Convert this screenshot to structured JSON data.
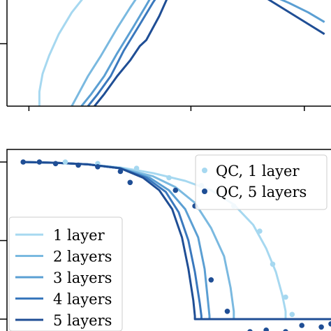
{
  "figure": {
    "panel_top": {
      "chart_data": {
        "type": "line",
        "xlabel": "",
        "ylabel": "",
        "title": "",
        "xlim": [
          0,
          1
        ],
        "ylim": [
          0,
          1
        ],
        "yticks": [
          0.52
        ],
        "xticks": [
          0.1,
          0.6,
          0.95
        ],
        "grid": false,
        "series": [
          {
            "color": "#a6d8f0",
            "x": [
              0.1,
              0.1,
              0.11,
              0.13,
              0.16,
              0.2,
              0.25
            ],
            "y": [
              0.0,
              0.12,
              0.27,
              0.42,
              0.6,
              0.78,
              0.95
            ]
          },
          {
            "color": "#7ab9e0",
            "x": [
              0.2,
              0.22,
              0.25,
              0.29,
              0.34,
              0.38,
              0.42
            ],
            "y": [
              0.0,
              0.1,
              0.25,
              0.42,
              0.65,
              0.82,
              0.98
            ]
          },
          {
            "color": "#5b9fd3",
            "x": [
              0.23,
              0.26,
              0.3,
              0.34,
              0.39,
              0.43,
              0.46
            ],
            "y": [
              0.0,
              0.1,
              0.25,
              0.44,
              0.66,
              0.84,
              0.98
            ]
          },
          {
            "color": "#3a78bd",
            "x": [
              0.25,
              0.28,
              0.32,
              0.36,
              0.41,
              0.45,
              0.48
            ],
            "y": [
              0.0,
              0.1,
              0.25,
              0.46,
              0.68,
              0.86,
              0.98
            ]
          },
          {
            "color": "#1f4e95",
            "x": [
              0.27,
              0.3,
              0.34,
              0.38,
              0.41,
              0.43,
              0.47,
              0.51
            ],
            "y": [
              0.0,
              0.1,
              0.25,
              0.38,
              0.5,
              0.55,
              0.75,
              0.99
            ]
          },
          {
            "color": "#5b9fd3",
            "x": [
              0.75,
              0.8,
              0.87,
              0.93,
              0.98
            ],
            "y": [
              1.0,
              0.94,
              0.86,
              0.78,
              0.7
            ]
          },
          {
            "color": "#1f4e95",
            "x": [
              0.75,
              0.8,
              0.86,
              0.92,
              0.98
            ],
            "y": [
              1.0,
              0.9,
              0.8,
              0.7,
              0.6
            ]
          }
        ]
      }
    },
    "panel_bottom": {
      "chart_data": {
        "type": "line",
        "xlabel": "",
        "ylabel": "",
        "title": "",
        "xlim": [
          0,
          1
        ],
        "ylim": [
          0,
          1
        ],
        "yticks": [
          0.0,
          0.5,
          1.0
        ],
        "grid": false,
        "legend_lines": {
          "position": "lower-left",
          "entries": [
            "1 layer",
            "2 layers",
            "3 layers",
            "4 layers",
            "5 layers"
          ]
        },
        "legend_points": {
          "position": "upper-right",
          "entries": [
            "QC, 1 layer",
            "QC, 5 layers"
          ]
        },
        "series": [
          {
            "name": "1 layer",
            "color": "#a6d8f0",
            "x": [
              0.05,
              0.15,
              0.25,
              0.35,
              0.45,
              0.55,
              0.63,
              0.7,
              0.76,
              0.8,
              0.83,
              0.85,
              0.86,
              0.86,
              0.95,
              1.0
            ],
            "y": [
              1.0,
              0.995,
              0.985,
              0.965,
              0.93,
              0.88,
              0.82,
              0.73,
              0.6,
              0.45,
              0.3,
              0.15,
              0.05,
              0.0,
              0.0,
              0.0
            ]
          },
          {
            "name": "2 layers",
            "color": "#7ab9e0",
            "x": [
              0.05,
              0.15,
              0.25,
              0.35,
              0.45,
              0.52,
              0.58,
              0.63,
              0.67,
              0.69,
              0.7,
              0.7,
              0.8,
              1.0
            ],
            "y": [
              1.0,
              0.995,
              0.985,
              0.96,
              0.91,
              0.84,
              0.74,
              0.58,
              0.4,
              0.2,
              0.05,
              0.0,
              0.0,
              0.0
            ]
          },
          {
            "name": "3 layers",
            "color": "#5b9fd3",
            "x": [
              0.05,
              0.15,
              0.25,
              0.35,
              0.44,
              0.5,
              0.55,
              0.59,
              0.61,
              0.62,
              0.625,
              0.625,
              0.8,
              1.0
            ],
            "y": [
              1.0,
              0.995,
              0.985,
              0.96,
              0.9,
              0.82,
              0.7,
              0.52,
              0.32,
              0.12,
              0.02,
              0.0,
              0.0,
              0.0
            ]
          },
          {
            "name": "4 layers",
            "color": "#3a78bd",
            "x": [
              0.05,
              0.15,
              0.25,
              0.35,
              0.43,
              0.49,
              0.53,
              0.56,
              0.58,
              0.595,
              0.6,
              0.6,
              0.8,
              1.0
            ],
            "y": [
              1.0,
              0.995,
              0.985,
              0.96,
              0.9,
              0.81,
              0.68,
              0.5,
              0.3,
              0.1,
              0.02,
              0.0,
              0.0,
              0.0
            ]
          },
          {
            "name": "5 layers",
            "color": "#1f4e95",
            "x": [
              0.05,
              0.15,
              0.25,
              0.35,
              0.42,
              0.47,
              0.51,
              0.54,
              0.56,
              0.575,
              0.58,
              0.58,
              0.8,
              1.0
            ],
            "y": [
              1.0,
              0.995,
              0.985,
              0.96,
              0.9,
              0.82,
              0.7,
              0.52,
              0.32,
              0.12,
              0.02,
              0.0,
              0.0,
              0.0
            ]
          }
        ],
        "points": [
          {
            "name": "QC, 1 layer",
            "color": "#a6d8f0",
            "x": [
              0.1,
              0.18,
              0.28,
              0.4,
              0.5,
              0.6,
              0.7,
              0.78,
              0.82,
              0.86,
              0.88
            ],
            "y": [
              1.0,
              1.0,
              0.99,
              0.96,
              0.9,
              0.85,
              0.72,
              0.56,
              0.35,
              0.14,
              0.03
            ]
          },
          {
            "name": "QC, 5 layers",
            "color": "#1f4e95",
            "x": [
              0.05,
              0.1,
              0.15,
              0.22,
              0.28,
              0.35,
              0.38,
              0.52,
              0.58,
              0.63,
              0.68,
              0.75,
              0.8,
              0.86,
              0.91,
              0.97,
              1.0
            ],
            "y": [
              1.0,
              1.0,
              0.99,
              0.98,
              0.97,
              0.94,
              0.87,
              0.82,
              0.72,
              0.25,
              0.05,
              -0.08,
              -0.07,
              -0.08,
              -0.04,
              -0.05,
              -0.03
            ]
          }
        ]
      }
    }
  }
}
